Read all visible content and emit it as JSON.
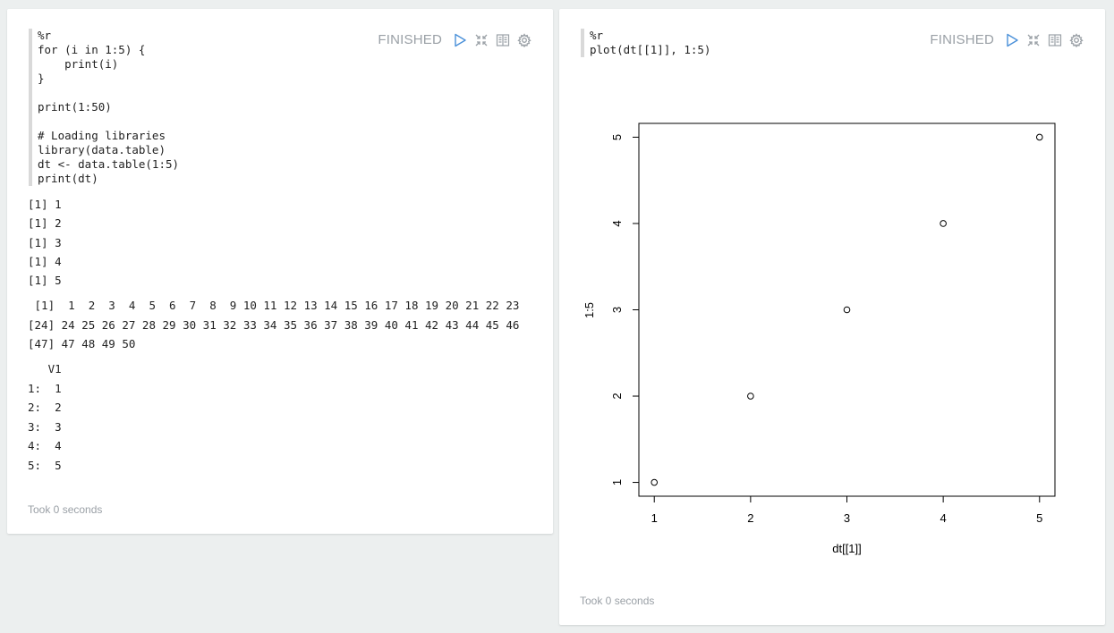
{
  "left_paragraph": {
    "code": "%r\nfor (i in 1:5) {\n    print(i)\n}\n\nprint(1:50)\n\n# Loading libraries\nlibrary(data.table)\ndt <- data.table(1:5)\nprint(dt)",
    "status": "FINISHED",
    "output_loop": [
      "[1] 1",
      "[1] 2",
      "[1] 3",
      "[1] 4",
      "[1] 5"
    ],
    "output_seq": [
      " [1]  1  2  3  4  5  6  7  8  9 10 11 12 13 14 15 16 17 18 19 20 21 22 23",
      "[24] 24 25 26 27 28 29 30 31 32 33 34 35 36 37 38 39 40 41 42 43 44 45 46",
      "[47] 47 48 49 50"
    ],
    "output_table": [
      "   V1",
      "1:  1",
      "2:  2",
      "3:  3",
      "4:  4",
      "5:  5"
    ],
    "took": "Took 0 seconds"
  },
  "right_paragraph": {
    "code": "%r\nplot(dt[[1]], 1:5)",
    "status": "FINISHED",
    "took": "Took 0 seconds"
  },
  "icons": [
    "run-icon",
    "collapse-icon",
    "book-icon",
    "gear-icon"
  ],
  "colors": {
    "accent": "#4a90d9",
    "icon_gray": "#9aa0a6",
    "background": "#ecefef"
  },
  "chart_data": {
    "type": "scatter",
    "x": [
      1,
      2,
      3,
      4,
      5
    ],
    "y": [
      1,
      2,
      3,
      4,
      5
    ],
    "xlabel": "dt[[1]]",
    "ylabel": "1:5",
    "xlim": [
      0.84,
      5.16
    ],
    "ylim": [
      0.84,
      5.16
    ],
    "xticks": [
      1,
      2,
      3,
      4,
      5
    ],
    "yticks": [
      1,
      2,
      3,
      4,
      5
    ],
    "marker": "open-circle"
  }
}
